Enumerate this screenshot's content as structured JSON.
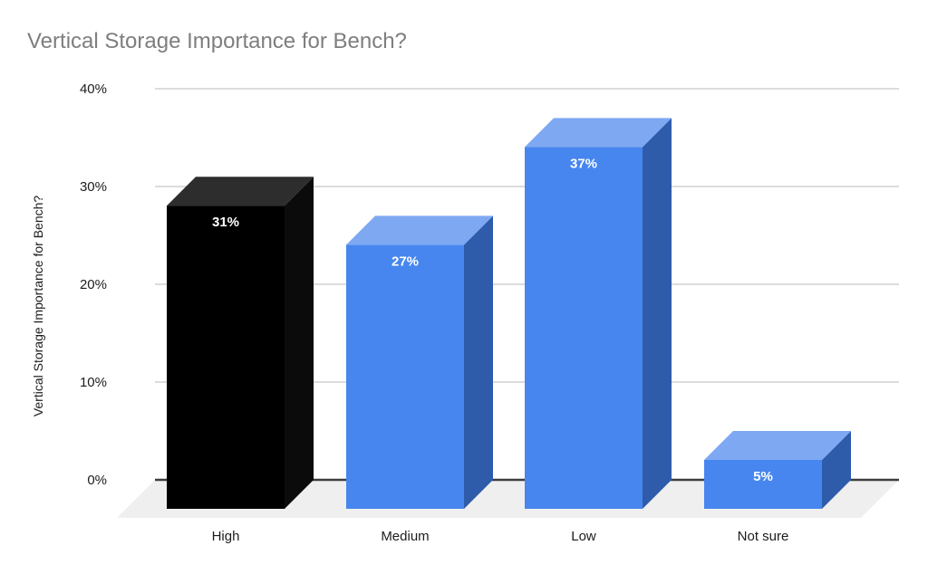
{
  "chart_data": {
    "type": "bar",
    "style": "3d-column",
    "title": "Vertical Storage Importance for Bench?",
    "ylabel": "Vertical Storage Importance for Bench?",
    "xlabel": "",
    "categories": [
      "High",
      "Medium",
      "Low",
      "Not sure"
    ],
    "values": [
      31,
      27,
      37,
      5
    ],
    "value_labels": [
      "31%",
      "27%",
      "37%",
      "5%"
    ],
    "ylim": [
      0,
      40
    ],
    "yticks": [
      {
        "value": 0,
        "label": "0%"
      },
      {
        "value": 10,
        "label": "10%"
      },
      {
        "value": 20,
        "label": "20%"
      },
      {
        "value": 30,
        "label": "30%"
      },
      {
        "value": 40,
        "label": "40%"
      }
    ],
    "grid": true,
    "legend_position": "none",
    "bar_colors": [
      {
        "front": "#000000",
        "top": "#2d2d2d",
        "side": "#0b0b0b"
      },
      {
        "front": "#4686ee",
        "top": "#7fa8f3",
        "side": "#2e5cab"
      },
      {
        "front": "#4686ee",
        "top": "#7fa8f3",
        "side": "#2e5cab"
      },
      {
        "front": "#4686ee",
        "top": "#7fa8f3",
        "side": "#2e5cab"
      }
    ],
    "colors": {
      "background": "#ffffff",
      "title_text": "#7e7e7e",
      "axis_text": "#1c1c1c",
      "gridline": "#dcdcdc",
      "baseline": "#3d3d3d",
      "floor": "#efefef",
      "value_label_text": "#ffffff"
    }
  }
}
